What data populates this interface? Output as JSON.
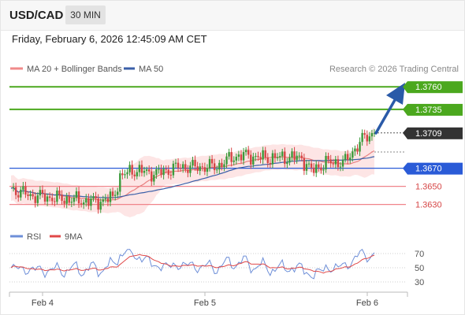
{
  "header": {
    "symbol": "USD/CAD",
    "timeframe": "30 MIN"
  },
  "datetime": "Friday, February 6, 2026 12:45:09 AM CET",
  "legend": {
    "ma20_label": "MA 20 + Bollinger Bands",
    "ma50_label": "MA 50",
    "credit": "Research © 2026 Trading Central"
  },
  "rsi_legend": {
    "rsi_label": "RSI",
    "ma_label": "9MA"
  },
  "colors": {
    "bull": "#3a9a3a",
    "bear": "#d64545",
    "ma20": "#e88080",
    "ma50": "#3a5fa8",
    "band_fill": "#fde0e0",
    "target": "#4ba81e",
    "pivot": "#2a5bd7",
    "support": "#f0848a",
    "last": "#333333",
    "arrow": "#2a5aa8",
    "rsi": "#6e8fd8",
    "rsi_ma": "#e04848"
  },
  "chart_data": [
    {
      "type": "candlestick",
      "x_ticks": [
        "Feb 4",
        "Feb 5",
        "Feb 6"
      ],
      "y_range": [
        1.3614,
        1.3768
      ],
      "levels": [
        {
          "value": 1.376,
          "label": "1.3760",
          "kind": "target"
        },
        {
          "value": 1.3735,
          "label": "1.3735",
          "kind": "target"
        },
        {
          "value": 1.3709,
          "label": "1.3709",
          "kind": "last"
        },
        {
          "value": 1.367,
          "label": "1.3670",
          "kind": "pivot"
        },
        {
          "value": 1.365,
          "label": "1.3650",
          "kind": "support"
        },
        {
          "value": 1.363,
          "label": "1.3630",
          "kind": "support"
        }
      ],
      "series": [
        {
          "name": "MA 20 + Bollinger Bands"
        },
        {
          "name": "MA 50"
        }
      ]
    },
    {
      "type": "line",
      "y_ticks": [
        70,
        50,
        30
      ],
      "series": [
        {
          "name": "RSI"
        },
        {
          "name": "9MA"
        }
      ]
    }
  ]
}
